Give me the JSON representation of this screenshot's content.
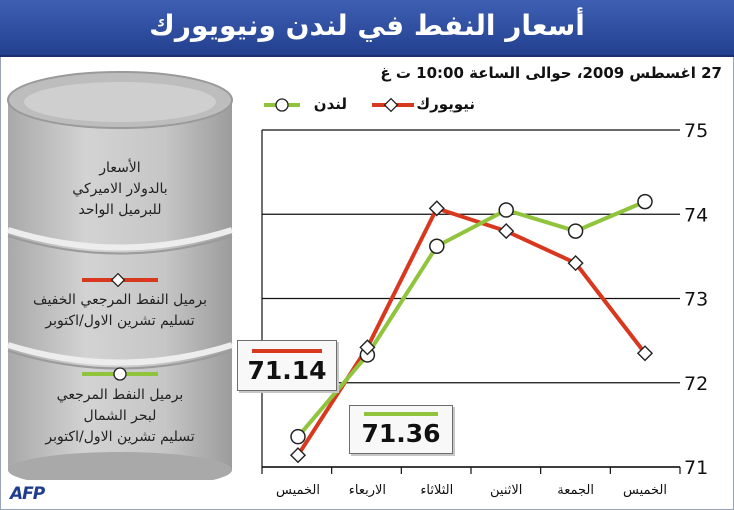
{
  "header": {
    "title": "أسعار النفط في لندن ونيويورك",
    "date_line": "27 اغسطس 2009، حوالى الساعة 10:00 ت غ"
  },
  "barrel": {
    "caption_lines": [
      "الأسعار",
      "بالدولار الاميركي",
      "للبرميل الواحد"
    ],
    "item1_lines": [
      "برميل النفط المرجعي الخفيف",
      "تسليم تشرين الاول/اكتوبر"
    ],
    "item2_lines": [
      "برميل النفط المرجعي",
      "لبحر الشمال",
      "تسليم تشرين الاول/اكتوبر"
    ]
  },
  "callouts": {
    "newyork_value": "71.14",
    "london_value": "71.36"
  },
  "credit": "AFP",
  "colors": {
    "newyork": "#d8381e",
    "london": "#8fc43c",
    "title_bg": "#2a4a9c",
    "barrel": "#c3c3c3"
  },
  "chart_data": {
    "type": "line",
    "categories": [
      "الخميس",
      "الاربعاء",
      "الثلاثاء",
      "الاثنين",
      "الجمعة",
      "الخميس"
    ],
    "series": [
      {
        "name": "نيويورك",
        "values": [
          71.14,
          72.42,
          74.07,
          73.8,
          73.42,
          72.35
        ]
      },
      {
        "name": "لندن",
        "values": [
          71.36,
          72.33,
          73.62,
          74.05,
          73.8,
          74.15
        ]
      }
    ],
    "yticks": [
      71,
      72,
      73,
      74,
      75
    ],
    "ylim": [
      71,
      75
    ],
    "grid": true,
    "legend_position": "top",
    "xlabel": "",
    "ylabel": ""
  }
}
